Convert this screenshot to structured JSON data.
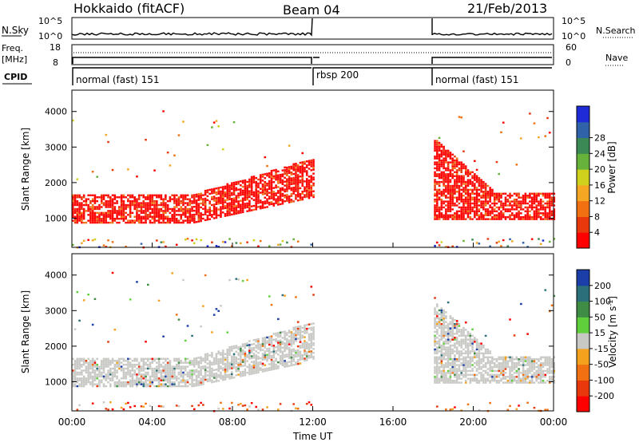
{
  "header": {
    "station": "Hokkaido (fitACF)",
    "beam": "Beam 04",
    "date": "21/Feb/2013"
  },
  "panels": {
    "nsky_label": "N.Sky",
    "nsky_ticks": [
      "10^5",
      "10^0"
    ],
    "nsky_right_ticks": [
      "10^5",
      "10^0"
    ],
    "nsearch_label": "N.Search",
    "freq_label_1": "Freq.",
    "freq_label_2": "[MHz]",
    "freq_ticks": [
      "18",
      "8"
    ],
    "nave_ticks": [
      "60",
      "0"
    ],
    "nave_label": "Nave",
    "cpid_label": "CPID",
    "cpid_modes": [
      {
        "label": "normal (fast) 151",
        "from": 0,
        "to": 12
      },
      {
        "label": "rbsp 200",
        "from": 12,
        "to": 18
      },
      {
        "label": "normal (fast) 151",
        "from": 18,
        "to": 24
      }
    ]
  },
  "chart_data": [
    {
      "type": "heatmap",
      "quantity": "Power",
      "ylabel": "Slant Range [km]",
      "ylim": [
        180,
        4600
      ],
      "yticks": [
        1000,
        2000,
        3000,
        4000
      ],
      "colorbar_label": "Power [dB]",
      "colorbar_ticks": [
        "4",
        "8",
        "12",
        "16",
        "20",
        "24",
        "28"
      ],
      "colors": [
        "#1e2bd6",
        "#2f62a8",
        "#3b8a55",
        "#66b23a",
        "#cfd21c",
        "#f5a623",
        "#f07012",
        "#e8380c",
        "#ff0000"
      ],
      "data_gap_hours": [
        12,
        18
      ]
    },
    {
      "type": "heatmap",
      "quantity": "Velocity",
      "ylabel": "Slant Range [km]",
      "ylim": [
        180,
        4600
      ],
      "yticks": [
        1000,
        2000,
        3000,
        4000
      ],
      "colorbar_label": "Velocity [m s^-1]",
      "colorbar_ticks": [
        "200",
        "100",
        "50",
        "15",
        "-15",
        "-50",
        "-100",
        "-200"
      ],
      "colors": [
        "#1c3ea8",
        "#2b6f7a",
        "#3f8d45",
        "#5fcf3b",
        "#c8c8c4",
        "#f4a21e",
        "#f07012",
        "#e8380c",
        "#ff0000"
      ],
      "data_gap_hours": [
        12,
        18
      ]
    }
  ],
  "time_axis": {
    "xlabel": "Time UT",
    "ticks": [
      "00:00",
      "04:00",
      "08:00",
      "12:00",
      "16:00",
      "20:00",
      "00:00"
    ],
    "xlim": [
      0,
      24
    ]
  }
}
